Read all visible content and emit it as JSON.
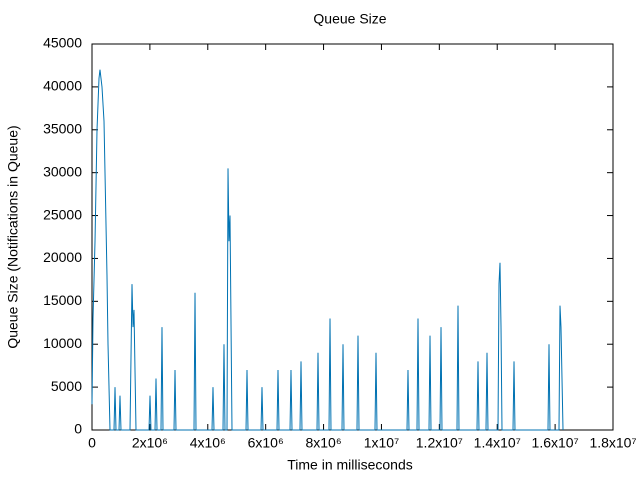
{
  "chart_data": {
    "type": "line",
    "title": "Queue Size",
    "x_label": "Time in milliseconds",
    "y_label": "Queue Size (Notifications in Queue)",
    "xlim": [
      0,
      18000000
    ],
    "ylim": [
      0,
      45000
    ],
    "xticks": [
      0,
      {
        "value": 2000000,
        "label": "2x10⁶"
      },
      {
        "value": 4000000,
        "label": "4x10⁶"
      },
      {
        "value": 6000000,
        "label": "6x10⁶"
      },
      {
        "value": 8000000,
        "label": "8x10⁶"
      },
      {
        "value": 10000000,
        "label": "1x10⁷"
      },
      {
        "value": 12000000,
        "label": "1.2x10⁷"
      },
      {
        "value": 14000000,
        "label": "1.4x10⁷"
      },
      {
        "value": 16000000,
        "label": "1.6x10⁷"
      },
      {
        "value": 18000000,
        "label": "1.8x10⁷"
      }
    ],
    "yticks": [
      0,
      5000,
      10000,
      15000,
      20000,
      25000,
      30000,
      35000,
      40000,
      45000
    ],
    "grid": false,
    "series": [
      {
        "color": "#0072b2",
        "x": [
          0,
          35000,
          104000,
          173000,
          242000,
          276000,
          345000,
          415000,
          449000,
          518000,
          553000,
          622000,
          760000,
          795000,
          829000,
          933000,
          967000,
          1002000,
          1313000,
          1382000,
          1417000,
          1451000,
          1520000,
          1969000,
          2004000,
          2038000,
          2177000,
          2211000,
          2246000,
          2384000,
          2418000,
          2453000,
          2833000,
          2868000,
          2902000,
          3524000,
          3559000,
          3593000,
          4146000,
          4180000,
          4215000,
          4526000,
          4560000,
          4595000,
          4664000,
          4699000,
          4733000,
          4768000,
          4837000,
          5321000,
          5355000,
          5390000,
          5839000,
          5873000,
          5908000,
          6392000,
          6426000,
          6461000,
          6841000,
          6875000,
          6910000,
          7186000,
          7221000,
          7255000,
          7774000,
          7808000,
          7843000,
          8188000,
          8223000,
          8257000,
          8637000,
          8672000,
          8706000,
          9155000,
          9190000,
          9225000,
          9777000,
          9812000,
          9846000,
          10883000,
          10917000,
          10952000,
          11228000,
          11263000,
          11298000,
          11643000,
          11678000,
          11712000,
          12023000,
          12058000,
          12092000,
          12610000,
          12645000,
          12679000,
          13301000,
          13336000,
          13370000,
          13612000,
          13647000,
          13681000,
          14027000,
          14061000,
          14096000,
          14131000,
          14165000,
          14545000,
          14580000,
          14614000,
          15754000,
          15789000,
          15823000,
          16134000,
          16169000,
          16203000,
          16273000
        ],
        "values": [
          3000,
          13000,
          22000,
          35000,
          41000,
          42000,
          40000,
          36000,
          30000,
          18000,
          10000,
          0,
          0,
          5000,
          0,
          0,
          4000,
          0,
          0,
          17000,
          12000,
          14000,
          0,
          0,
          4000,
          0,
          0,
          6000,
          0,
          0,
          12000,
          0,
          0,
          7000,
          0,
          0,
          16000,
          0,
          0,
          5000,
          0,
          0,
          10000,
          0,
          0,
          30500,
          22000,
          25000,
          0,
          0,
          7000,
          0,
          0,
          5000,
          0,
          0,
          7000,
          0,
          0,
          7000,
          0,
          0,
          8000,
          0,
          0,
          9000,
          0,
          0,
          13000,
          0,
          0,
          10000,
          0,
          0,
          11000,
          0,
          0,
          9000,
          0,
          0,
          7000,
          0,
          0,
          13000,
          0,
          0,
          11000,
          0,
          0,
          12000,
          0,
          0,
          14500,
          0,
          0,
          8000,
          0,
          0,
          9000,
          0,
          0,
          17000,
          19500,
          12000,
          0,
          0,
          8000,
          0,
          0,
          10000,
          0,
          0,
          14500,
          12000,
          0
        ]
      }
    ]
  }
}
